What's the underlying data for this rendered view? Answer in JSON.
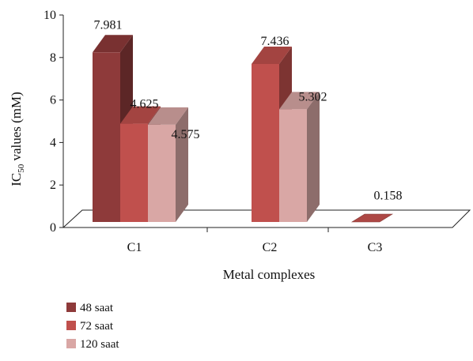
{
  "chart_data": {
    "type": "bar",
    "title": "",
    "xlabel": "Metal complexes",
    "ylabel": {
      "prefix": "IC",
      "sub": "50",
      "suffix": " values (mM)"
    },
    "ylim": [
      0,
      10
    ],
    "yticks": [
      "0",
      "2",
      "4",
      "6",
      "8",
      "10"
    ],
    "categories": [
      "C1",
      "C2",
      "C3"
    ],
    "grid": false,
    "legend_position": "bottom-left",
    "series": [
      {
        "name": "48 saat",
        "color": "#8e3a3a",
        "values": [
          7.981,
          null,
          null
        ],
        "labels": [
          "7.981",
          "",
          ""
        ]
      },
      {
        "name": "72 saat",
        "color": "#c0504d",
        "values": [
          4.625,
          7.436,
          0.158
        ],
        "labels": [
          "4.625",
          "7.436",
          "0.158"
        ]
      },
      {
        "name": "120 saat",
        "color": "#d9a7a5",
        "values": [
          4.575,
          5.302,
          null
        ],
        "labels": [
          "4.575",
          "5.302",
          ""
        ]
      }
    ]
  }
}
